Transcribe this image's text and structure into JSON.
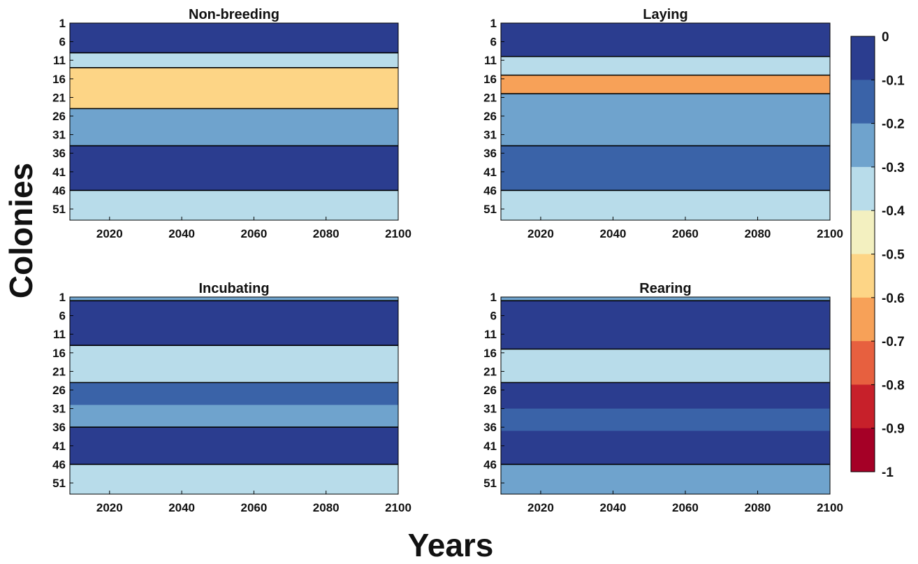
{
  "chart_data": {
    "type": "heatmap",
    "xlabel": "Years",
    "ylabel": "Colonies",
    "x_ticks": [
      2020,
      2040,
      2060,
      2080,
      2100
    ],
    "y_ticks": [
      1,
      6,
      11,
      16,
      21,
      26,
      31,
      36,
      41,
      46,
      51
    ],
    "x_range": [
      2009,
      2100
    ],
    "y_range": [
      1,
      54
    ],
    "colorbar": {
      "range": [
        -1,
        0
      ],
      "ticks": [
        "0",
        "-0.1",
        "-0.2",
        "-0.3",
        "-0.4",
        "-0.5",
        "-0.6",
        "-0.7",
        "-0.8",
        "-0.9",
        "-1"
      ],
      "colors": [
        "#2b3d8f",
        "#3a63a8",
        "#6fa3cd",
        "#b8dcea",
        "#f3f0c0",
        "#fdd586",
        "#f7a158",
        "#e7603f",
        "#c7202a",
        "#a50026"
      ],
      "placement": "right"
    },
    "panels": [
      {
        "title": "Non-breeding",
        "bands": [
          {
            "y": [
              1,
              9
            ],
            "level": -0.08
          },
          {
            "y": [
              9,
              13
            ],
            "level": -0.3
          },
          {
            "y": [
              13,
              24
            ],
            "level": -0.55
          },
          {
            "y": [
              24,
              34
            ],
            "level": -0.25
          },
          {
            "y": [
              34,
              46
            ],
            "level": -0.08
          },
          {
            "y": [
              46,
              54
            ],
            "level": -0.35
          }
        ]
      },
      {
        "title": "Laying",
        "bands": [
          {
            "y": [
              1,
              10
            ],
            "level": -0.08
          },
          {
            "y": [
              10,
              15
            ],
            "level": -0.35
          },
          {
            "y": [
              15,
              20
            ],
            "level": -0.62
          },
          {
            "y": [
              20,
              34
            ],
            "level": -0.28
          },
          {
            "y": [
              34,
              46
            ],
            "level": -0.1
          },
          {
            "y": [
              46,
              54
            ],
            "level": -0.3
          }
        ]
      },
      {
        "title": "Incubating",
        "bands": [
          {
            "y": [
              1,
              2
            ],
            "level": -0.25
          },
          {
            "y": [
              2,
              14
            ],
            "level": -0.05
          },
          {
            "y": [
              14,
              24
            ],
            "level": -0.38
          },
          {
            "y": [
              24,
              30
            ],
            "level": -0.1
          },
          {
            "y": [
              30,
              36
            ],
            "level": -0.2
          },
          {
            "y": [
              36,
              46
            ],
            "level": -0.05
          },
          {
            "y": [
              46,
              54
            ],
            "level": -0.32
          }
        ]
      },
      {
        "title": "Rearing",
        "bands": [
          {
            "y": [
              1,
              2
            ],
            "level": -0.2
          },
          {
            "y": [
              2,
              15
            ],
            "level": -0.05
          },
          {
            "y": [
              15,
              24
            ],
            "level": -0.35
          },
          {
            "y": [
              24,
              31
            ],
            "level": -0.08
          },
          {
            "y": [
              31,
              37
            ],
            "level": -0.18
          },
          {
            "y": [
              37,
              46
            ],
            "level": -0.05
          },
          {
            "y": [
              46,
              54
            ],
            "level": -0.28
          }
        ]
      }
    ]
  }
}
